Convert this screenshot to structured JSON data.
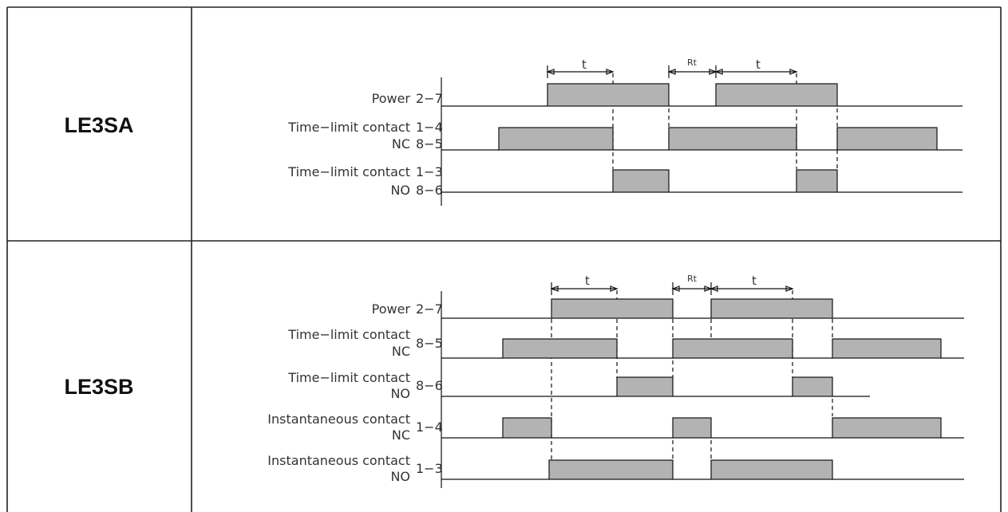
{
  "lefe3sa": {
    "model": "LE3SA",
    "signals": [
      {
        "name": "Power",
        "pins": "2−7"
      },
      {
        "name": "Time−limit contact",
        "pins": "1−4"
      },
      {
        "name": "NC",
        "pins": "8−5"
      },
      {
        "name": "Time−limit contact",
        "pins": "1−3"
      },
      {
        "name": "NO",
        "pins": "8−6"
      }
    ],
    "timing_labels": {
      "t1": "t",
      "rt": "Rt",
      "t2": "t"
    }
  },
  "le3sb": {
    "model": "LE3SB",
    "signals": [
      {
        "name": "Power",
        "pins": "2−7"
      },
      {
        "name": "Time−limit contact",
        "sub": "NC",
        "pins": "8−5"
      },
      {
        "name": "Time−limit contact",
        "sub": "NO",
        "pins": "8−6"
      },
      {
        "name": "Instantaneous contact",
        "sub": "NC",
        "pins": "1−4"
      },
      {
        "name": "Instantaneous contact",
        "sub": "NO",
        "pins": "1−3"
      }
    ],
    "timing_labels": {
      "t1": "t",
      "rt": "Rt",
      "t2": "t"
    }
  }
}
